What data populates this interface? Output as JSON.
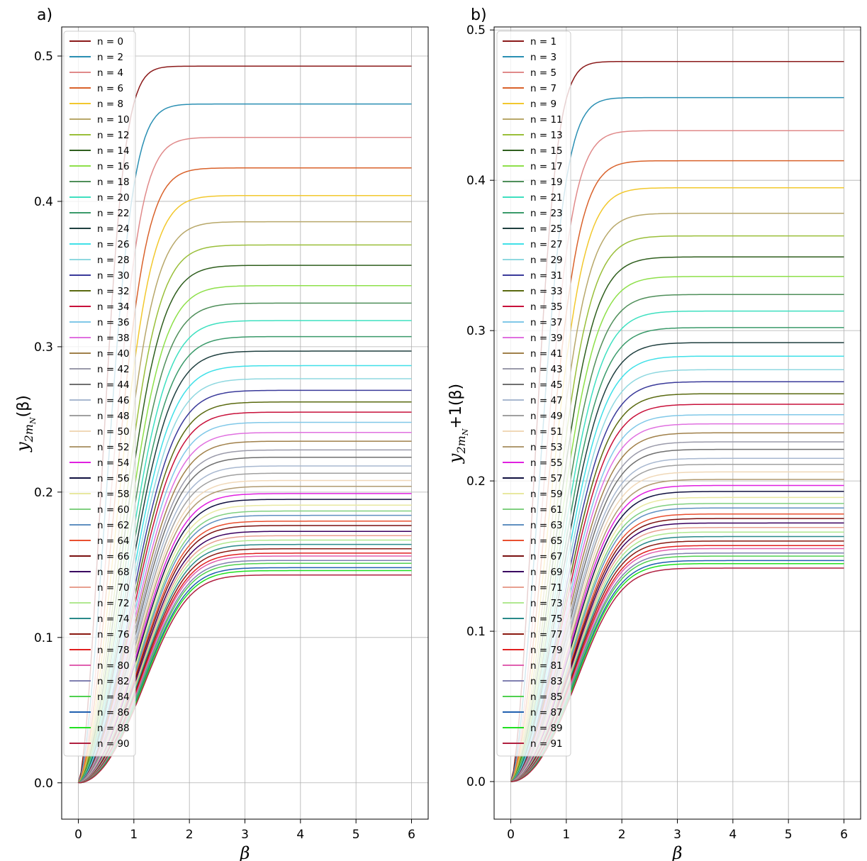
{
  "chart_data": [
    {
      "panel": "a)",
      "type": "line",
      "xlabel": "β",
      "ylabel": {
        "main": "y",
        "sub": "2m",
        "subsub": "N",
        "tail": "(β)"
      },
      "xlim": [
        -0.3,
        6.3
      ],
      "ylim": [
        -0.025,
        0.52
      ],
      "xticks": [
        0,
        1,
        2,
        3,
        4,
        5,
        6
      ],
      "yticks": [
        0.0,
        0.1,
        0.2,
        0.3,
        0.4,
        0.5
      ],
      "ytick_labels": [
        "0.0",
        "0.1",
        "0.2",
        "0.3",
        "0.4",
        "0.5"
      ],
      "grid": true,
      "legend_position": "upper-left",
      "series_names": [
        "n = 0",
        "n = 2",
        "n = 4",
        "n = 6",
        "n = 8",
        "n = 10",
        "n = 12",
        "n = 14",
        "n = 16",
        "n = 18",
        "n = 20",
        "n = 22",
        "n = 24",
        "n = 26",
        "n = 28",
        "n = 30",
        "n = 32",
        "n = 34",
        "n = 36",
        "n = 38",
        "n = 40",
        "n = 42",
        "n = 44",
        "n = 46",
        "n = 48",
        "n = 50",
        "n = 52",
        "n = 54",
        "n = 56",
        "n = 58",
        "n = 60",
        "n = 62",
        "n = 64",
        "n = 66",
        "n = 68",
        "n = 70",
        "n = 72",
        "n = 74",
        "n = 76",
        "n = 78",
        "n = 80",
        "n = 82",
        "n = 84",
        "n = 86",
        "n = 88",
        "n = 90"
      ],
      "end_values": [
        0.493,
        0.467,
        0.444,
        0.423,
        0.404,
        0.386,
        0.37,
        0.356,
        0.342,
        0.33,
        0.318,
        0.307,
        0.297,
        0.287,
        0.278,
        0.27,
        0.262,
        0.255,
        0.248,
        0.241,
        0.235,
        0.229,
        0.224,
        0.218,
        0.213,
        0.208,
        0.204,
        0.199,
        0.195,
        0.191,
        0.187,
        0.184,
        0.18,
        0.177,
        0.173,
        0.17,
        0.167,
        0.164,
        0.161,
        0.158,
        0.156,
        0.153,
        0.151,
        0.148,
        0.146,
        0.143
      ]
    },
    {
      "panel": "b)",
      "type": "line",
      "xlabel": "β",
      "ylabel": {
        "main": "y",
        "sub": "2m",
        "subsub": "N",
        "tail": "+1(β)"
      },
      "xlim": [
        -0.3,
        6.3
      ],
      "ylim": [
        -0.025,
        0.502
      ],
      "xticks": [
        0,
        1,
        2,
        3,
        4,
        5,
        6
      ],
      "yticks": [
        0.0,
        0.1,
        0.2,
        0.3,
        0.4,
        0.5
      ],
      "ytick_labels": [
        "0.0",
        "0.1",
        "0.2",
        "0.3",
        "0.4",
        "0.5"
      ],
      "grid": true,
      "legend_position": "upper-left",
      "series_names": [
        "n = 1",
        "n = 3",
        "n = 5",
        "n = 7",
        "n = 9",
        "n = 11",
        "n = 13",
        "n = 15",
        "n = 17",
        "n = 19",
        "n = 21",
        "n = 23",
        "n = 25",
        "n = 27",
        "n = 29",
        "n = 31",
        "n = 33",
        "n = 35",
        "n = 37",
        "n = 39",
        "n = 41",
        "n = 43",
        "n = 45",
        "n = 47",
        "n = 49",
        "n = 51",
        "n = 53",
        "n = 55",
        "n = 57",
        "n = 59",
        "n = 61",
        "n = 63",
        "n = 65",
        "n = 67",
        "n = 69",
        "n = 71",
        "n = 73",
        "n = 75",
        "n = 77",
        "n = 79",
        "n = 81",
        "n = 83",
        "n = 85",
        "n = 87",
        "n = 89",
        "n = 91"
      ],
      "end_values": [
        0.479,
        0.455,
        0.433,
        0.413,
        0.395,
        0.378,
        0.363,
        0.349,
        0.336,
        0.324,
        0.313,
        0.302,
        0.292,
        0.283,
        0.274,
        0.266,
        0.258,
        0.251,
        0.244,
        0.238,
        0.232,
        0.226,
        0.221,
        0.215,
        0.211,
        0.206,
        0.201,
        0.197,
        0.193,
        0.189,
        0.185,
        0.182,
        0.178,
        0.175,
        0.172,
        0.169,
        0.166,
        0.163,
        0.16,
        0.157,
        0.155,
        0.152,
        0.15,
        0.147,
        0.145,
        0.142
      ]
    }
  ],
  "colors": [
    "#8b1a1a",
    "#2a8fb3",
    "#e08a8a",
    "#d9622b",
    "#f2c82e",
    "#b8a86a",
    "#9abf3a",
    "#2f5f1e",
    "#8ee04a",
    "#4f8f5a",
    "#3fe0c0",
    "#3a9a6a",
    "#1f3f3f",
    "#40e0e8",
    "#8fd8e0",
    "#3a3a9a",
    "#5a6a10",
    "#c8103a",
    "#80c8e8",
    "#e070e0",
    "#a0804a",
    "#9a9aaa",
    "#707070",
    "#a8b8d0",
    "#a0a0a0",
    "#f0d8b8",
    "#b09a70",
    "#e020e0",
    "#101040",
    "#e8e8a0",
    "#80d080",
    "#6090c0",
    "#e85030",
    "#7a1010",
    "#3a0060",
    "#e8a090",
    "#b0e890",
    "#2a8a8a",
    "#8a1810",
    "#e02020",
    "#e060b0",
    "#8080b0",
    "#50d050",
    "#2060b0",
    "#20e020",
    "#b02040"
  ]
}
